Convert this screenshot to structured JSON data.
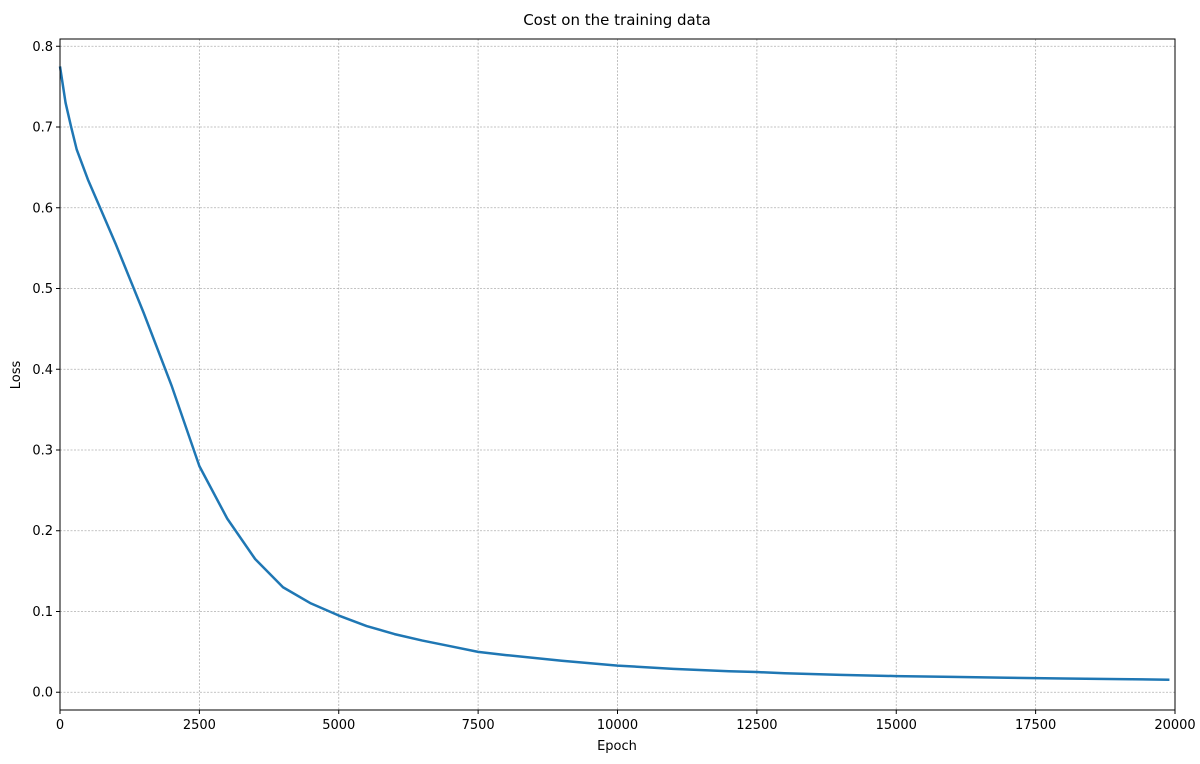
{
  "chart_data": {
    "type": "line",
    "title": "Cost on the training data",
    "x_label": "Epoch",
    "y_label": "Loss",
    "x": [
      0,
      100,
      200,
      300,
      500,
      750,
      1000,
      1500,
      2000,
      2500,
      3000,
      3500,
      4000,
      4500,
      5000,
      5500,
      6000,
      6500,
      7000,
      7500,
      8000,
      9000,
      10000,
      11000,
      12000,
      12500,
      13000,
      14000,
      15000,
      16000,
      17000,
      18000,
      19000,
      19900
    ],
    "series": [
      {
        "name": "Loss",
        "color": "#1f77b4",
        "values": [
          0.775,
          0.73,
          0.7,
          0.672,
          0.635,
          0.595,
          0.555,
          0.47,
          0.38,
          0.28,
          0.215,
          0.165,
          0.13,
          0.11,
          0.095,
          0.082,
          0.072,
          0.064,
          0.057,
          0.05,
          0.046,
          0.039,
          0.033,
          0.029,
          0.026,
          0.025,
          0.0235,
          0.0215,
          0.02,
          0.019,
          0.018,
          0.017,
          0.0163,
          0.0155
        ]
      }
    ],
    "xlim": [
      0,
      20000
    ],
    "ylim": [
      -0.022,
      0.809
    ],
    "xticks": [
      0,
      2500,
      5000,
      7500,
      10000,
      12500,
      15000,
      17500,
      20000
    ],
    "yticks": [
      {
        "value": 0,
        "label": "0.0"
      },
      0.1,
      0.2,
      0.3,
      0.4,
      0.5,
      0.6,
      0.7,
      0.8
    ],
    "grid": true
  }
}
